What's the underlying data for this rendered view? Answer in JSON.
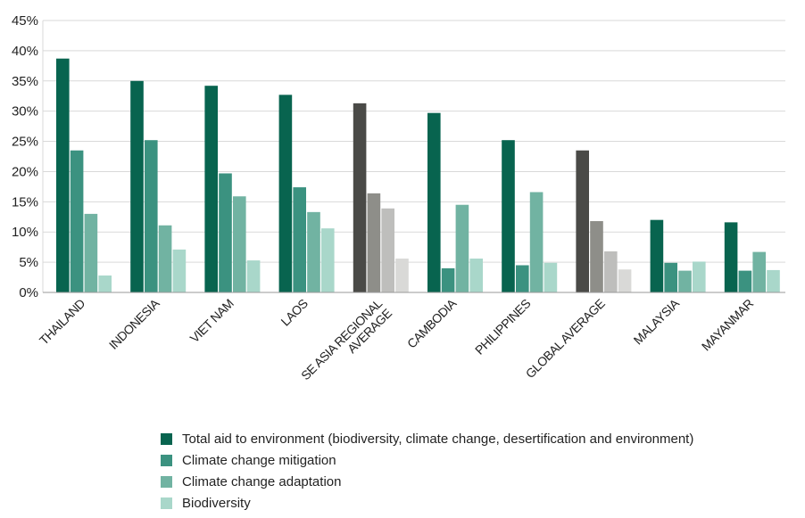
{
  "chart_data": {
    "type": "bar",
    "title": "",
    "xlabel": "",
    "ylabel": "",
    "ylim": [
      0,
      45
    ],
    "yticks": [
      "0%",
      "5%",
      "10%",
      "15%",
      "20%",
      "25%",
      "30%",
      "35%",
      "40%",
      "45%"
    ],
    "grid": true,
    "legend_position": "bottom",
    "categories": [
      [
        "THAILAND"
      ],
      [
        "INDONESIA"
      ],
      [
        "VIET NAM"
      ],
      [
        "LAOS"
      ],
      [
        "SE ASIA REGIONAL",
        "AVERAGE"
      ],
      [
        "CAMBODIA"
      ],
      [
        "PHILIPPINES"
      ],
      [
        "GLOBAL AVERAGE"
      ],
      [
        "MALAYSIA"
      ],
      [
        "MAYANMAR"
      ]
    ],
    "series": [
      {
        "name": "Total aid to environment (biodiversity, climate change, desertification and environment)",
        "values": [
          38.7,
          35.0,
          34.2,
          32.7,
          31.3,
          29.7,
          25.2,
          23.5,
          12.0,
          11.6
        ]
      },
      {
        "name": "Climate change mitigation",
        "values": [
          23.5,
          25.2,
          19.7,
          17.4,
          16.4,
          4.0,
          4.5,
          11.8,
          4.9,
          3.6
        ]
      },
      {
        "name": "Climate change adaptation",
        "values": [
          13.0,
          11.1,
          15.9,
          13.3,
          13.9,
          14.5,
          16.6,
          6.8,
          3.6,
          6.7
        ]
      },
      {
        "name": "Biodiversity",
        "values": [
          2.8,
          7.1,
          5.3,
          10.6,
          5.6,
          5.6,
          4.9,
          3.8,
          5.1,
          3.7
        ]
      }
    ],
    "series_colors": [
      "#08644f",
      "#3b9280",
      "#71b3a2",
      "#a9d7ca"
    ],
    "average_colors": [
      "#4a4a47",
      "#8e8e89",
      "#bebebc",
      "#d9d9d7"
    ],
    "average_categories": [
      "SE ASIA REGIONAL",
      "GLOBAL AVERAGE"
    ]
  }
}
